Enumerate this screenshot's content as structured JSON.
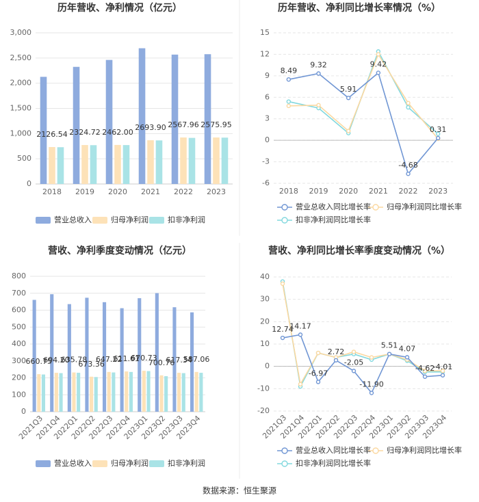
{
  "chart_data": [
    {
      "type": "bar",
      "title": "历年营收、净利情况（亿元）",
      "categories": [
        "2018",
        "2019",
        "2020",
        "2021",
        "2022",
        "2023"
      ],
      "series": [
        {
          "name": "营业总收入",
          "color": "#8eabde",
          "values": [
            2126.54,
            2324.72,
            2462.0,
            2693.9,
            2567.96,
            2575.95
          ],
          "value_labels": [
            "2126.54",
            "2324.72",
            "2462.00",
            "2693.90",
            "2567.96",
            "2575.95"
          ]
        },
        {
          "name": "归母净利润",
          "color": "#fde2b8",
          "values": [
            733,
            773,
            775,
            868,
            923,
            923
          ]
        },
        {
          "name": "扣非净利润",
          "color": "#a9e3e6",
          "values": [
            730,
            770,
            772,
            865,
            915,
            920
          ]
        }
      ],
      "ylim": [
        0,
        3000
      ],
      "yticks": [
        0,
        500,
        {
          "value": 1000,
          "label": "1,000"
        },
        {
          "value": 1500,
          "label": "1,500"
        },
        {
          "value": 2000,
          "label": "2,000"
        },
        {
          "value": 2500,
          "label": "2,500"
        },
        {
          "value": 3000,
          "label": "3,000"
        }
      ],
      "grid": true,
      "legend": "bottom"
    },
    {
      "type": "line",
      "title": "历年营收、净利同比增长率情况（%）",
      "categories": [
        "2018",
        "2019",
        "2020",
        "2021",
        "2022",
        "2023"
      ],
      "series": [
        {
          "name": "营业总收入同比增长率",
          "color": "#7096d4",
          "values": [
            8.49,
            9.32,
            5.91,
            9.42,
            -4.68,
            0.31
          ],
          "show_labels": true
        },
        {
          "name": "归母净利润同比增长率",
          "color": "#fbd8a0",
          "values": [
            4.8,
            4.9,
            1.3,
            12.0,
            5.2,
            0.2
          ]
        },
        {
          "name": "扣非净利润同比增长率",
          "color": "#82d8de",
          "values": [
            5.4,
            4.5,
            1.0,
            12.4,
            4.6,
            0.9
          ]
        }
      ],
      "ylim": [
        -6,
        15
      ],
      "yticks": [
        -6,
        -3,
        0,
        3,
        6,
        9,
        12,
        15
      ],
      "grid": true,
      "legend": "bottom"
    },
    {
      "type": "bar",
      "title": "营收、净利季度变动情况（亿元）",
      "categories": [
        "2021Q3",
        "2021Q4",
        "2022Q1",
        "2022Q2",
        "2022Q3",
        "2022Q4",
        "2023Q1",
        "2023Q2",
        "2023Q3",
        "2023Q4"
      ],
      "series": [
        {
          "name": "营业总收入",
          "color": "#8eabde",
          "values": [
            660.75,
            694.2,
            635.78,
            673.36,
            647.22,
            611.61,
            670.73,
            700.76,
            617.34,
            587.06
          ],
          "value_labels": [
            "660.75",
            "694.20",
            "635.78",
            "673.36",
            "647.22",
            "611.61",
            "670.73",
            "700.76",
            "617.34",
            "587.06"
          ]
        },
        {
          "name": "归母净利润",
          "color": "#fde2b8",
          "values": [
            222,
            230,
            232,
            207,
            235,
            238,
            242,
            215,
            230,
            235
          ]
        },
        {
          "name": "扣非净利润",
          "color": "#a9e3e6",
          "values": [
            220,
            228,
            230,
            205,
            232,
            235,
            240,
            210,
            228,
            230
          ]
        }
      ],
      "ylim": [
        0,
        800
      ],
      "yticks": [
        0,
        100,
        200,
        300,
        400,
        500,
        600,
        700,
        800
      ],
      "grid": true,
      "legend": "bottom"
    },
    {
      "type": "line",
      "title": "营收、净利同比增长率季度变动情况（%）",
      "categories": [
        "2021Q3",
        "2021Q4",
        "2022Q1",
        "2022Q2",
        "2022Q3",
        "2022Q4",
        "2023Q1",
        "2023Q2",
        "2023Q3",
        "2023Q4"
      ],
      "series": [
        {
          "name": "营业总收入同比增长率",
          "color": "#7096d4",
          "values": [
            12.74,
            14.17,
            -6.97,
            2.72,
            -2.05,
            -11.9,
            5.51,
            4.07,
            -4.62,
            -4.01
          ],
          "value_labels": [
            "12.74",
            "14.17",
            "-6.97",
            "2.72",
            "-2.05",
            "-11.90",
            "5.51",
            "4.07",
            "-4.62",
            "-4.01"
          ]
        },
        {
          "name": "归母净利润同比增长率",
          "color": "#fbd8a0",
          "values": [
            37,
            -8,
            6,
            4,
            6.5,
            4,
            5.5,
            3,
            -2,
            -2
          ]
        },
        {
          "name": "扣非净利润同比增长率",
          "color": "#82d8de",
          "values": [
            38,
            -9,
            6,
            4,
            5.5,
            3,
            5.5,
            2.5,
            -2.5,
            -2.5
          ]
        }
      ],
      "ylim": [
        -20,
        40
      ],
      "yticks": [
        -20,
        -10,
        0,
        10,
        20,
        30,
        40
      ],
      "grid": true,
      "legend": "bottom"
    }
  ],
  "source": "数据来源：恒生聚源"
}
